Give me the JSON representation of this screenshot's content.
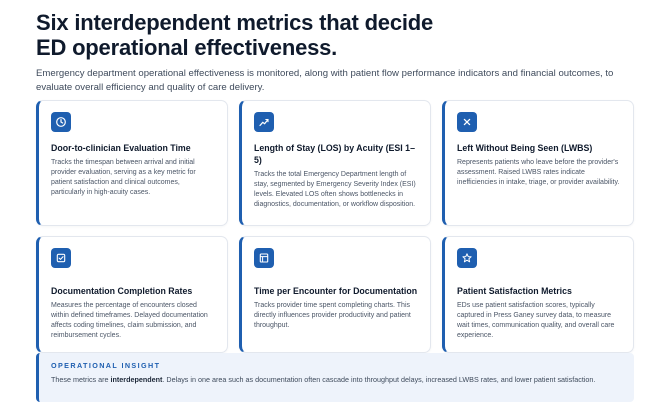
{
  "header": {
    "title_line1": "Six interdependent metrics that decide",
    "title_line2": "ED operational effectiveness.",
    "subtitle": "Emergency department operational effectiveness is monitored, along with patient flow performance indicators and financial outcomes, to evaluate overall efficiency and quality of care delivery."
  },
  "accent_color": "#1f5fb0",
  "cards": [
    {
      "icon": "clock-icon",
      "title": "Door-to-clinician Evaluation Time",
      "description": "Tracks the timespan between arrival and initial provider evaluation, serving as a key metric for patient satisfaction and clinical outcomes, particularly in high-acuity cases."
    },
    {
      "icon": "trend-chart-icon",
      "title": "Length of Stay (LOS) by Acuity (ESI 1–5)",
      "description": "Tracks the total Emergency Department length of stay, segmented by Emergency Severity Index (ESI) levels. Elevated LOS often shows bottlenecks in diagnostics, documentation, or workflow disposition."
    },
    {
      "icon": "close-x-icon",
      "title": "Left Without Being Seen (LWBS)",
      "description": "Represents patients who leave before the provider's assessment. Raised LWBS rates indicate inefficiencies in intake, triage, or provider availability."
    },
    {
      "icon": "checkbox-icon",
      "title": "Documentation Completion Rates",
      "description": "Measures the percentage of encounters closed within defined timeframes. Delayed documentation affects coding timelines, claim submission, and reimbursement cycles."
    },
    {
      "icon": "document-icon",
      "title": "Time per Encounter for Documentation",
      "description": "Tracks provider time spent completing charts. This directly influences provider productivity and patient throughput."
    },
    {
      "icon": "star-icon",
      "title": "Patient Satisfaction Metrics",
      "description": "EDs use patient satisfaction scores, typically captured in Press Ganey survey data, to measure wait times, communication quality, and overall care experience."
    }
  ],
  "insight": {
    "label": "OPERATIONAL INSIGHT",
    "text_before": "These metrics are ",
    "text_bold": "interdependent",
    "text_after": ". Delays in one area such as documentation often cascade into throughput delays, increased LWBS rates, and lower patient satisfaction."
  }
}
